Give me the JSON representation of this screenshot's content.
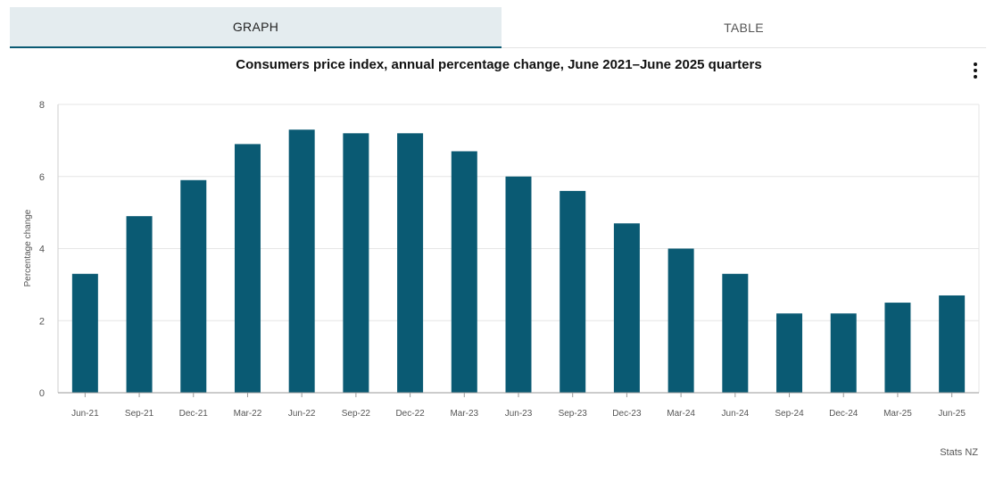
{
  "tabs": [
    {
      "label": "GRAPH",
      "active": true
    },
    {
      "label": "TABLE",
      "active": false
    }
  ],
  "menu_icon": "vertical-ellipsis-icon",
  "source": "Stats NZ",
  "colors": {
    "bar": "#0a5a73",
    "grid": "#e6e6e6",
    "active_tab_bg": "#e4ecef"
  },
  "chart_data": {
    "type": "bar",
    "title": "Consumers price index, annual percentage change, June 2021–June 2025 quarters",
    "xlabel": "",
    "ylabel": "Percentage change",
    "ylim": [
      0,
      8
    ],
    "yticks": [
      0,
      2,
      4,
      6,
      8
    ],
    "grid": true,
    "categories": [
      "Jun-21",
      "Sep-21",
      "Dec-21",
      "Mar-22",
      "Jun-22",
      "Sep-22",
      "Dec-22",
      "Mar-23",
      "Jun-23",
      "Sep-23",
      "Dec-23",
      "Mar-24",
      "Jun-24",
      "Sep-24",
      "Dec-24",
      "Mar-25",
      "Jun-25"
    ],
    "values": [
      3.3,
      4.9,
      5.9,
      6.9,
      7.3,
      7.2,
      7.2,
      6.7,
      6.0,
      5.6,
      4.7,
      4.0,
      3.3,
      2.2,
      2.2,
      2.5,
      2.7
    ]
  }
}
